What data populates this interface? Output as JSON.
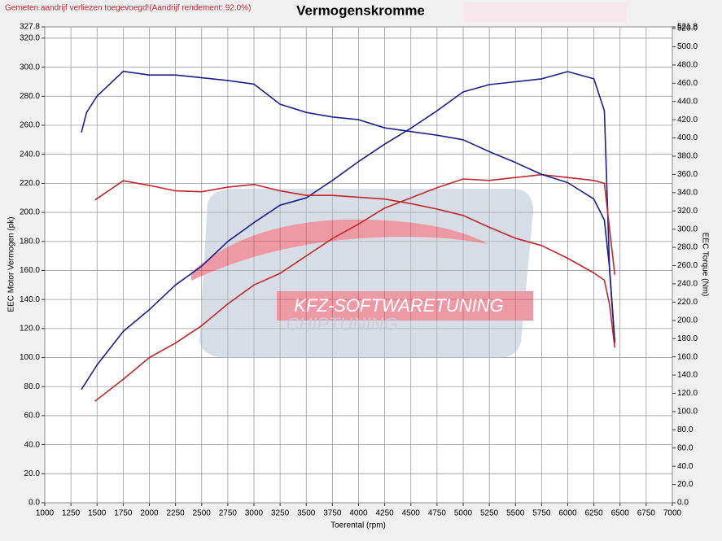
{
  "chart_data": {
    "type": "line",
    "title": "Vermogenskromme",
    "note": "Gemeten aandrijf verliezen toegevoegd!(Aandrijf rendement: 92.0%)",
    "xlabel": "Toerental (rpm)",
    "ylabel": "EEC Motor Vermogen (pk)",
    "y2label": "EEC Torque (Nm)",
    "watermark": [
      "KFZ-SOFTWARETUNING",
      "CHIPTUNING"
    ],
    "grid": true,
    "xlim": [
      1000,
      7000
    ],
    "xticks": [
      1000,
      1250,
      1500,
      1750,
      2000,
      2250,
      2500,
      2750,
      3000,
      3250,
      3500,
      3750,
      4000,
      4250,
      4500,
      4750,
      5000,
      5250,
      5500,
      5750,
      6000,
      6250,
      6500,
      6750,
      7000
    ],
    "ylim": [
      0,
      327.8
    ],
    "yticks": [
      {
        "value": 0,
        "label": "0.0"
      },
      {
        "value": 20,
        "label": "20.0"
      },
      {
        "value": 40,
        "label": "40.0"
      },
      {
        "value": 60,
        "label": "60.0"
      },
      {
        "value": 80,
        "label": "80.0"
      },
      {
        "value": 100,
        "label": "100.0"
      },
      {
        "value": 120,
        "label": "120.0"
      },
      {
        "value": 140,
        "label": "140.0"
      },
      {
        "value": 160,
        "label": "160.0"
      },
      {
        "value": 180,
        "label": "180.0"
      },
      {
        "value": 200,
        "label": "200.0"
      },
      {
        "value": 220,
        "label": "220.0"
      },
      {
        "value": 240,
        "label": "240.0"
      },
      {
        "value": 260,
        "label": "260.0"
      },
      {
        "value": 280,
        "label": "280.0"
      },
      {
        "value": 300,
        "label": "300.0"
      },
      {
        "value": 320,
        "label": "320.0"
      },
      327.8
    ],
    "y2lim": [
      0,
      521.8
    ],
    "y2ticks": [
      {
        "value": 0,
        "label": "0.0"
      },
      {
        "value": 20,
        "label": "20.0"
      },
      {
        "value": 40,
        "label": "40.0"
      },
      {
        "value": 60,
        "label": "60.0"
      },
      {
        "value": 80,
        "label": "80.0"
      },
      {
        "value": 100,
        "label": "100.0"
      },
      {
        "value": 120,
        "label": "120.0"
      },
      {
        "value": 140,
        "label": "140.0"
      },
      {
        "value": 160,
        "label": "160.0"
      },
      {
        "value": 180,
        "label": "180.0"
      },
      {
        "value": 200,
        "label": "200.0"
      },
      {
        "value": 220,
        "label": "220.0"
      },
      {
        "value": 240,
        "label": "240.0"
      },
      {
        "value": 260,
        "label": "260.0"
      },
      {
        "value": 280,
        "label": "280.0"
      },
      {
        "value": 300,
        "label": "300.0"
      },
      {
        "value": 320,
        "label": "320.0"
      },
      {
        "value": 340,
        "label": "340.0"
      },
      {
        "value": 360,
        "label": "360.0"
      },
      {
        "value": 380,
        "label": "380.0"
      },
      {
        "value": 400,
        "label": "400.0"
      },
      {
        "value": 420,
        "label": "420.0"
      },
      {
        "value": 440,
        "label": "440.0"
      },
      {
        "value": 460,
        "label": "460.0"
      },
      {
        "value": 480,
        "label": "480.0"
      },
      {
        "value": 500,
        "label": "500.0"
      },
      {
        "value": 520,
        "label": "520.0"
      },
      521.8
    ],
    "series": [
      {
        "color": "#1c1f8c",
        "x": [
          1350,
          1500,
          1750,
          2000,
          2250,
          2500,
          2750,
          3000,
          3250,
          3500,
          3750,
          4000,
          4250,
          4500,
          4750,
          5000,
          5250,
          5500,
          5750,
          6000,
          6250,
          6350,
          6400,
          6450
        ],
        "values": [
          78,
          95,
          118,
          133,
          150,
          163,
          180,
          193,
          205,
          210,
          222,
          235,
          247,
          258,
          270,
          283,
          288,
          290,
          292,
          297,
          292,
          270,
          160,
          110
        ]
      },
      {
        "color": "#c0272d",
        "x": [
          1480,
          1750,
          2000,
          2250,
          2500,
          2750,
          3000,
          3250,
          3500,
          3750,
          4000,
          4250,
          4500,
          4750,
          5000,
          5250,
          5500,
          5750,
          6000,
          6250,
          6350,
          6450
        ],
        "values": [
          70,
          85,
          100,
          110,
          122,
          137,
          150,
          158,
          170,
          182,
          192,
          203,
          210,
          217,
          223,
          222,
          224,
          226,
          224,
          222,
          220,
          157
        ]
      },
      {
        "color": "#1c1f8c",
        "axis": "y2",
        "x": [
          1350,
          1400,
          1500,
          1750,
          2000,
          2250,
          2500,
          2750,
          3000,
          3250,
          3500,
          3750,
          4000,
          4250,
          4500,
          4750,
          5000,
          5250,
          5500,
          5750,
          6000,
          6250,
          6350,
          6400,
          6450
        ],
        "values": [
          406,
          428,
          446,
          473,
          469,
          469,
          466,
          463,
          459,
          437,
          428,
          423,
          420,
          411,
          407,
          403,
          398,
          385,
          373,
          360,
          351,
          333,
          310,
          257,
          177
        ]
      },
      {
        "color": "#c0272d",
        "axis": "y2",
        "x": [
          1480,
          1750,
          2000,
          2250,
          2500,
          2750,
          3000,
          3250,
          3500,
          3750,
          4000,
          4250,
          4500,
          4750,
          5000,
          5250,
          5500,
          5750,
          6000,
          6250,
          6350,
          6400,
          6450
        ],
        "values": [
          332,
          353,
          348,
          342,
          341,
          346,
          349,
          342,
          337,
          337,
          335,
          333,
          328,
          322,
          315,
          302,
          290,
          282,
          268,
          252,
          244,
          217,
          170
        ]
      }
    ]
  }
}
